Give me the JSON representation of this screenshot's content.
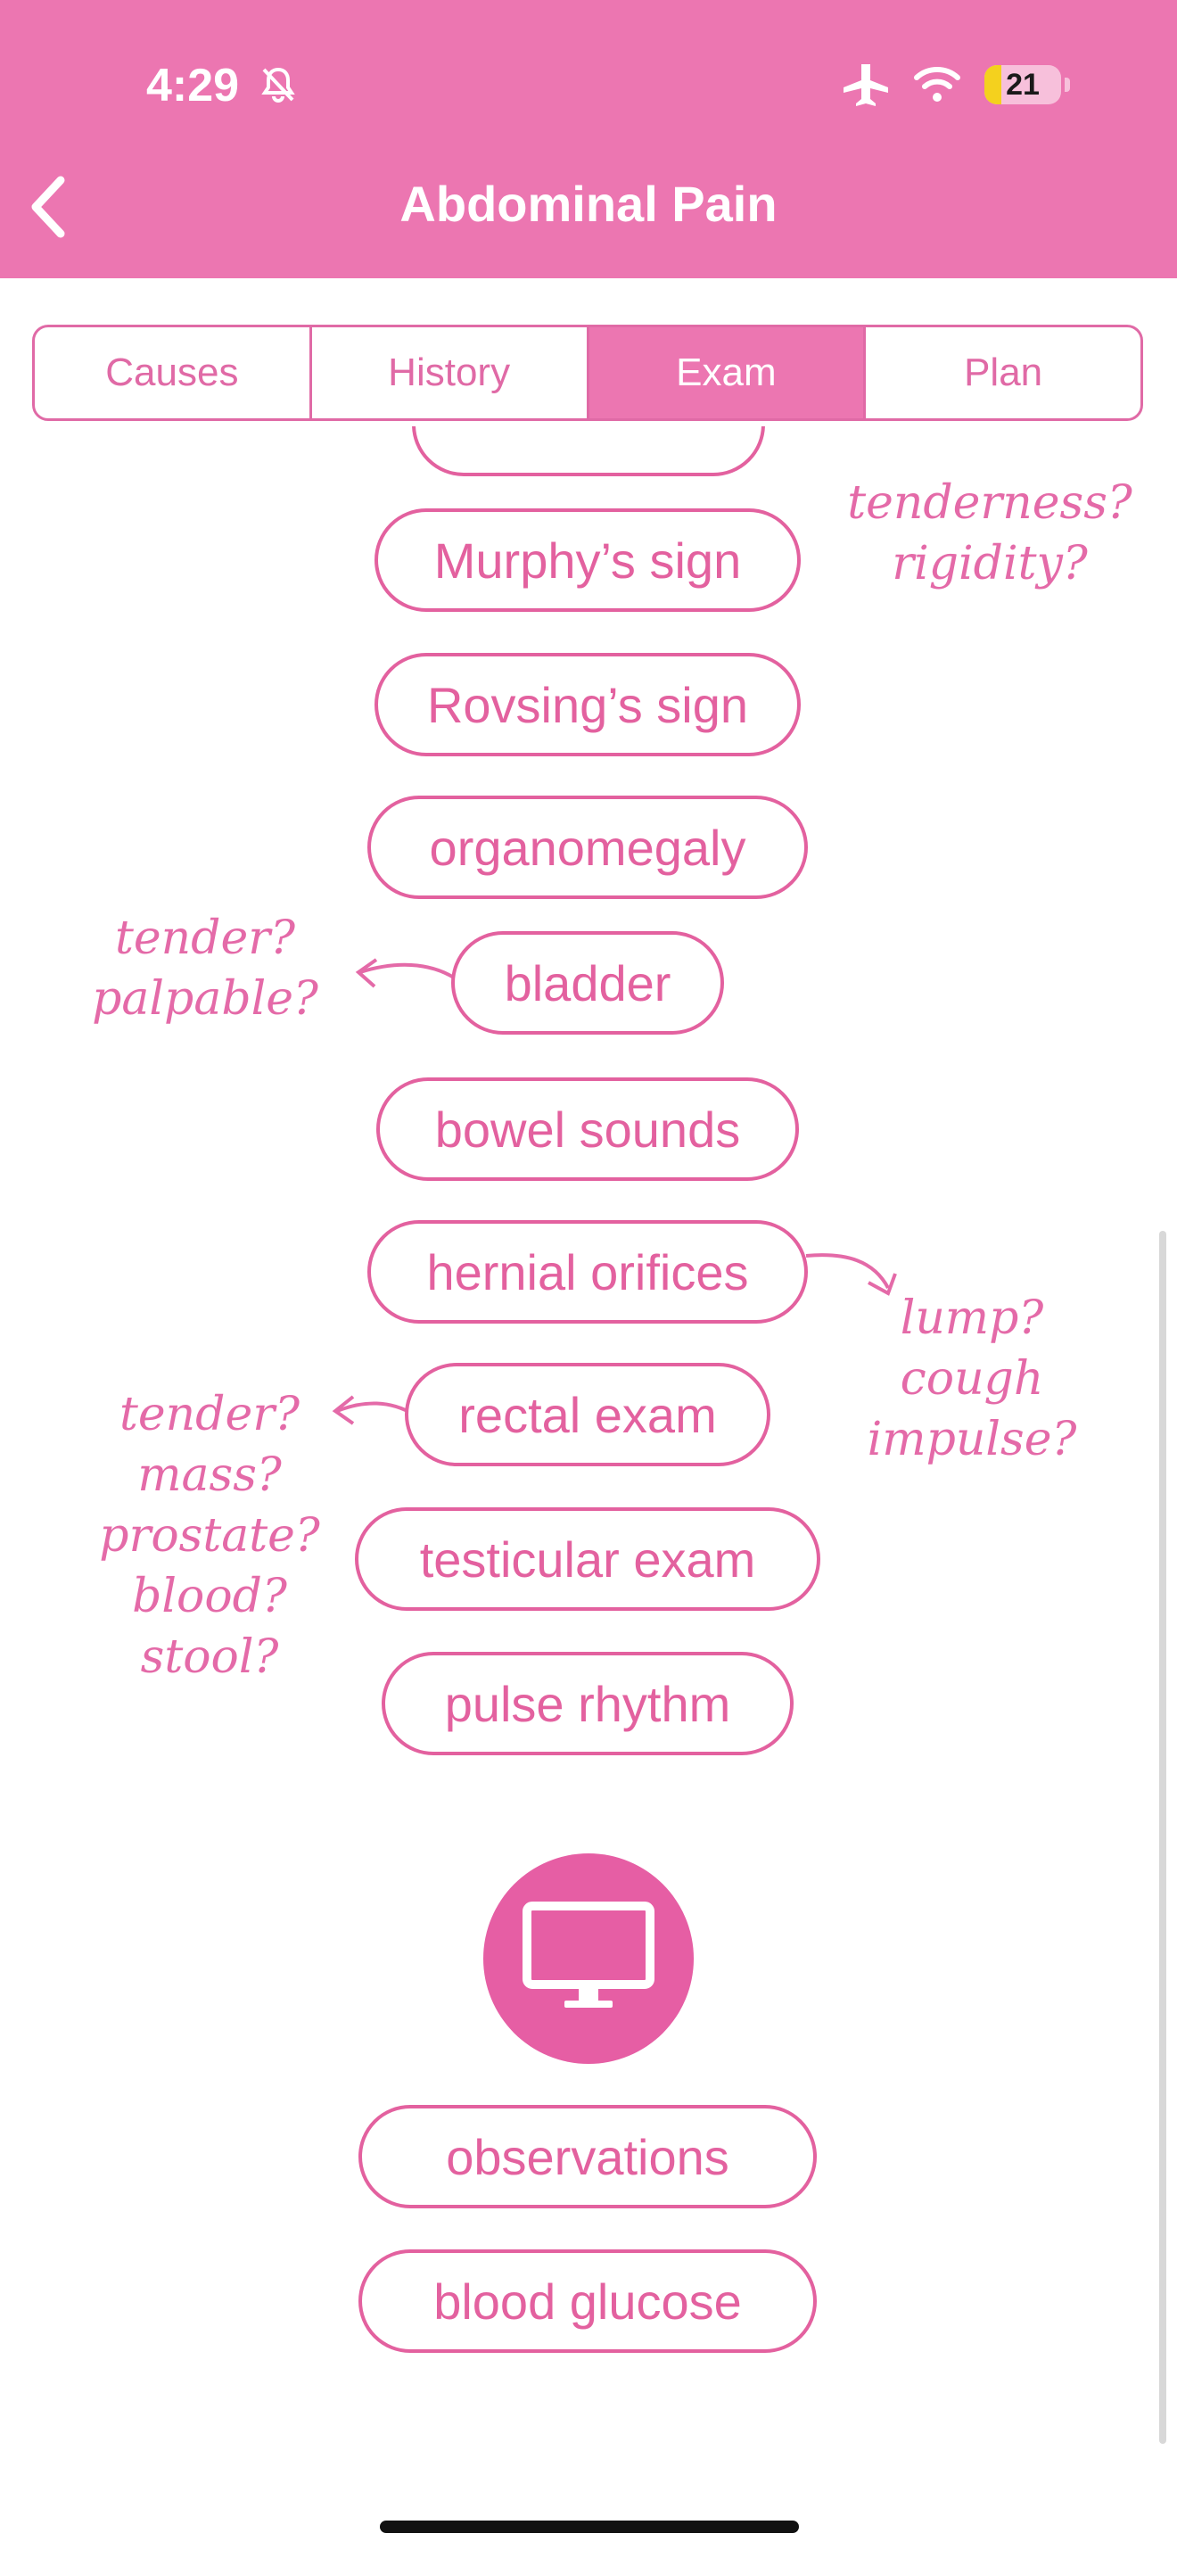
{
  "status_bar": {
    "time": "4:29",
    "battery": "21"
  },
  "header": {
    "title": "Abdominal Pain"
  },
  "tabs": [
    {
      "label": "Causes",
      "active": false
    },
    {
      "label": "History",
      "active": false
    },
    {
      "label": "Exam",
      "active": true
    },
    {
      "label": "Plan",
      "active": false
    }
  ],
  "exam_items": [
    "Murphy’s sign",
    "Rovsing’s sign",
    "organomegaly",
    "bladder",
    "bowel sounds",
    "hernial orifices",
    "rectal exam",
    "testicular exam",
    "pulse rhythm"
  ],
  "notes": {
    "peritoneal": "tenderness?\nrigidity?",
    "bladder": "tender?\npalpable?",
    "hernia": "lump?\ncough\nimpulse?",
    "rectal": "tender?\nmass?\nprostate?\nblood?\nstool?"
  },
  "bedside_section": {
    "icon": "monitor-icon"
  },
  "bedside_items": [
    "observations",
    "blood glucose"
  ],
  "colors": {
    "accent": "#ec76b1",
    "pill": "#e3619f"
  }
}
